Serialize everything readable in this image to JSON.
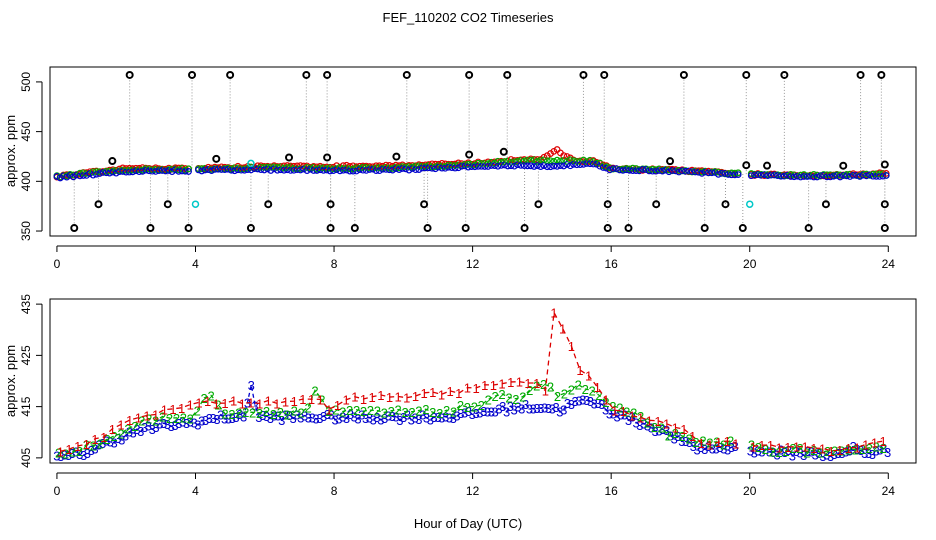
{
  "figure": {
    "title": "FEF_110202  CO2 Timeseries",
    "xlabel": "Hour of Day (UTC)"
  },
  "chart_data": [
    {
      "type": "scatter",
      "panel": "top",
      "ylabel": "approx. ppm",
      "xlim": [
        -0.2,
        24.8
      ],
      "ylim": [
        345,
        515
      ],
      "xticks": [
        "0",
        "4",
        "8",
        "12",
        "16",
        "20",
        "24"
      ],
      "yticks": [
        "350",
        "400",
        "450",
        "500"
      ],
      "colors": {
        "flask": "#000000",
        "series1": "#dd0000",
        "series2": "#00aa00",
        "series3": "#0000cc",
        "cal": "#00c8c8"
      },
      "series": [
        {
          "name": "series1",
          "color": "#dd0000",
          "x": [
            0,
            2,
            4,
            6,
            8,
            10,
            12,
            13,
            14,
            14.4,
            14.6,
            15,
            15.5,
            16,
            18,
            20,
            22,
            24
          ],
          "y": [
            405,
            413,
            413,
            415,
            415,
            416,
            418,
            421,
            422,
            432,
            427,
            421,
            420,
            413,
            411,
            407,
            406,
            408
          ]
        },
        {
          "name": "series2",
          "color": "#00aa00",
          "x": [
            0,
            2,
            4,
            6,
            8,
            10,
            12,
            13,
            14,
            15,
            15.5,
            16,
            18,
            20,
            22,
            24
          ],
          "y": [
            405,
            412,
            412,
            414,
            413,
            414,
            417,
            420,
            421,
            421,
            420,
            413,
            411,
            407,
            406,
            407
          ]
        },
        {
          "name": "series3",
          "color": "#0000cc",
          "x": [
            0,
            2,
            4,
            6,
            8,
            10,
            12,
            13,
            14,
            15,
            15.5,
            16,
            18,
            20,
            22,
            24
          ],
          "y": [
            404,
            410,
            411,
            412,
            411,
            412,
            415,
            416,
            415,
            417,
            417,
            412,
            410,
            406,
            405,
            406
          ]
        },
        {
          "name": "flags",
          "color": "#000000",
          "x_high": [
            2.1,
            3.9,
            5.0,
            7.2,
            7.8,
            10.1,
            11.9,
            13.0,
            15.2,
            15.8,
            18.1,
            19.9,
            21.0,
            23.2,
            23.8
          ],
          "x_low": [
            0.5,
            2.7,
            3.8,
            5.6,
            7.9,
            8.6,
            10.7,
            11.8,
            13.5,
            15.9,
            16.5,
            18.7,
            19.8,
            21.7,
            23.9
          ],
          "x_mid": [
            1.2,
            3.2,
            6.1,
            7.9,
            10.6,
            13.9,
            15.9,
            17.3,
            19.3,
            22.2,
            23.9
          ],
          "x_ref": [
            1.6,
            4.6,
            6.7,
            7.8,
            9.8,
            11.9,
            12.9,
            17.7,
            19.9,
            20.5,
            22.7,
            23.9
          ]
        }
      ]
    },
    {
      "type": "line",
      "panel": "bottom",
      "ylabel": "approx. ppm",
      "xlim": [
        -0.2,
        24.8
      ],
      "ylim": [
        404,
        436
      ],
      "xticks": [
        "0",
        "4",
        "8",
        "12",
        "16",
        "20",
        "24"
      ],
      "yticks": [
        "405",
        "415",
        "425",
        "435"
      ],
      "series": [
        {
          "name": "1",
          "color": "#dd0000",
          "x": [
            0,
            0.7,
            1.4,
            2.2,
            3.0,
            3.8,
            4.0,
            4.8,
            5.5,
            6.3,
            7.1,
            7.7,
            7.8,
            8.5,
            9.2,
            10.0,
            10.8,
            11.6,
            12.2,
            12.8,
            13.4,
            13.9,
            14.1,
            14.3,
            14.5,
            14.8,
            15.1,
            15.5,
            16.0,
            16.6,
            17.3,
            18.0,
            18.6,
            19.3,
            19.8,
            20.1,
            20.8,
            21.6,
            22.4,
            23.1,
            23.8
          ],
          "y": [
            406.5,
            407.5,
            409.5,
            413,
            414,
            415,
            415.5,
            416,
            416,
            416,
            416.5,
            416.5,
            414,
            416.5,
            417,
            417,
            417.5,
            418,
            419,
            419.5,
            419.5,
            420,
            418,
            434,
            431,
            428,
            422,
            420,
            415,
            413,
            412,
            411,
            408,
            408,
            408,
            407.5,
            407,
            407,
            406.5,
            407,
            408
          ]
        },
        {
          "name": "2",
          "color": "#00aa00",
          "x": [
            0,
            0.8,
            1.6,
            2.4,
            3.2,
            4.0,
            4.3,
            4.8,
            5.6,
            6.4,
            7.2,
            7.5,
            7.8,
            8.6,
            9.4,
            10.2,
            11.0,
            11.8,
            12.3,
            12.8,
            13.4,
            14.0,
            14.5,
            15.0,
            15.5,
            16.0,
            16.8,
            17.6,
            18.4,
            19.2,
            19.8,
            20.2,
            21.0,
            21.8,
            22.6,
            23.4,
            23.9
          ],
          "y": [
            406,
            407,
            409,
            412,
            413,
            413,
            418,
            414,
            414,
            414,
            414,
            419,
            414,
            414,
            414,
            414,
            414,
            415,
            415.5,
            417,
            417,
            420,
            417,
            419,
            418,
            415,
            413,
            410,
            408,
            408,
            408,
            407,
            406.5,
            406.5,
            406,
            406.5,
            407
          ]
        },
        {
          "name": "3",
          "color": "#0000cc",
          "x": [
            0,
            0.8,
            1.6,
            2.4,
            3.2,
            4.0,
            4.8,
            5.4,
            5.6,
            5.8,
            6.4,
            7.2,
            7.8,
            8.6,
            9.4,
            10.2,
            11.0,
            11.8,
            12.3,
            12.8,
            13.4,
            14.0,
            14.5,
            15.0,
            15.5,
            16.0,
            16.8,
            17.6,
            18.4,
            19.2,
            19.8,
            20.2,
            21.0,
            21.8,
            22.6,
            23.0,
            23.4,
            23.9
          ],
          "y": [
            405,
            406,
            408.5,
            410.5,
            411.5,
            412,
            413,
            413,
            419.5,
            413,
            413,
            413,
            413,
            413,
            413,
            413,
            413,
            413.5,
            414,
            414.5,
            415,
            415,
            414.5,
            416,
            416,
            414,
            412,
            410,
            407,
            407,
            407,
            406.5,
            406,
            406,
            405.5,
            407,
            406,
            406.5
          ]
        }
      ]
    }
  ]
}
